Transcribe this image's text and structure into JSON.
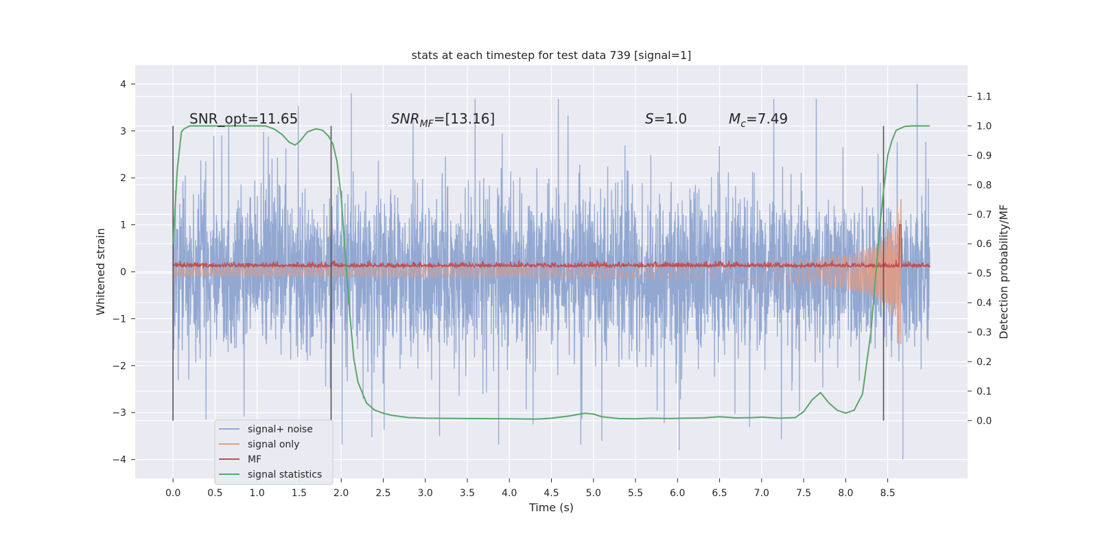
{
  "chart_data": {
    "type": "line",
    "title": "stats at each timestep for test data 739 [signal=1]",
    "xlabel": "Time (s)",
    "ylabel_left": "Whitened strain",
    "ylabel_right": "Detection probability/MF",
    "xlim": [
      -0.45,
      9.45
    ],
    "ylim_left": [
      -4.4,
      4.4
    ],
    "ylim_right": [
      -0.196,
      1.206
    ],
    "x_ticks": [
      0.0,
      0.5,
      1.0,
      1.5,
      2.0,
      2.5,
      3.0,
      3.5,
      4.0,
      4.5,
      5.0,
      5.5,
      6.0,
      6.5,
      7.0,
      7.5,
      8.0,
      8.5
    ],
    "x_tick_labels": [
      "0.0",
      "0.5",
      "1.0",
      "1.5",
      "2.0",
      "2.5",
      "3.0",
      "3.5",
      "4.0",
      "4.5",
      "5.0",
      "5.5",
      "6.0",
      "6.5",
      "7.0",
      "7.5",
      "8.0",
      "8.5"
    ],
    "y_left_ticks": [
      -4,
      -3,
      -2,
      -1,
      0,
      1,
      2,
      3,
      4
    ],
    "y_left_tick_labels": [
      "−4",
      "−3",
      "−2",
      "−1",
      "0",
      "1",
      "2",
      "3",
      "4"
    ],
    "y_right_ticks": [
      0.0,
      0.1,
      0.2,
      0.3,
      0.4,
      0.5,
      0.6,
      0.7,
      0.8,
      0.9,
      1.0,
      1.1
    ],
    "y_right_tick_labels": [
      "0.0",
      "0.1",
      "0.2",
      "0.3",
      "0.4",
      "0.5",
      "0.6",
      "0.7",
      "0.8",
      "0.9",
      "1.0",
      "1.1"
    ],
    "grid": true,
    "annotations": {
      "snr_opt": "SNR_opt=11.65",
      "snr_mf_name": "SNR",
      "snr_mf_sub": "MF",
      "snr_mf_value": "=[13.16]",
      "s_name": "S",
      "s_value": "=1.0",
      "mc_name": "M",
      "mc_sub": "c",
      "mc_value": "=7.49"
    },
    "vertical_lines_x": [
      0.0,
      1.88,
      8.45
    ],
    "noise_series": {
      "name": "signal+ noise",
      "x_range": [
        0.0,
        9.0
      ],
      "typical_abs_max": 1.2,
      "min": -4.0,
      "max": 4.0,
      "color": "#92a8d1"
    },
    "signal_series": {
      "name": "signal only",
      "x_range": [
        0.0,
        8.66
      ],
      "chirp_merger_time": 8.66,
      "peak_amplitude": 1.0,
      "color": "#e59b80"
    },
    "mf_series": {
      "name": "MF",
      "x_range": [
        0.0,
        9.0
      ],
      "baseline": 0.1,
      "peak_time": 8.65,
      "peak_value": 1.0,
      "color": "#c44e52"
    },
    "stat_series": {
      "name": "signal statistics",
      "color": "#55a868",
      "x": [
        0.0,
        0.05,
        0.1,
        0.13,
        0.2,
        0.3,
        0.5,
        0.7,
        0.9,
        1.0,
        1.1,
        1.2,
        1.3,
        1.38,
        1.45,
        1.5,
        1.6,
        1.7,
        1.78,
        1.85,
        1.9,
        1.95,
        2.0,
        2.05,
        2.1,
        2.15,
        2.2,
        2.3,
        2.4,
        2.5,
        2.6,
        2.8,
        3.0,
        3.5,
        4.0,
        4.3,
        4.4,
        4.5,
        4.7,
        4.9,
        5.0,
        5.1,
        5.3,
        5.5,
        5.7,
        5.9,
        6.1,
        6.3,
        6.5,
        6.7,
        6.9,
        7.0,
        7.2,
        7.4,
        7.5,
        7.6,
        7.7,
        7.8,
        7.9,
        8.0,
        8.1,
        8.2,
        8.3,
        8.4,
        8.45,
        8.5,
        8.55,
        8.6,
        8.7,
        8.8,
        9.0
      ],
      "y": [
        0.6,
        0.85,
        0.98,
        0.99,
        1.0,
        1.0,
        1.0,
        1.0,
        1.0,
        1.0,
        1.0,
        0.99,
        0.97,
        0.945,
        0.935,
        0.945,
        0.98,
        0.99,
        0.985,
        0.965,
        0.94,
        0.88,
        0.76,
        0.56,
        0.37,
        0.21,
        0.13,
        0.06,
        0.035,
        0.025,
        0.018,
        0.01,
        0.008,
        0.007,
        0.006,
        0.005,
        0.006,
        0.008,
        0.015,
        0.025,
        0.022,
        0.013,
        0.007,
        0.006,
        0.008,
        0.007,
        0.008,
        0.009,
        0.013,
        0.009,
        0.01,
        0.012,
        0.008,
        0.01,
        0.03,
        0.07,
        0.095,
        0.06,
        0.035,
        0.025,
        0.035,
        0.09,
        0.3,
        0.64,
        0.78,
        0.9,
        0.95,
        0.985,
        0.998,
        1.0,
        1.0
      ]
    },
    "legend": {
      "position": "lower-left",
      "entries": [
        {
          "label": "signal+ noise",
          "color": "#92a8d1"
        },
        {
          "label": "signal only",
          "color": "#e59b80"
        },
        {
          "label": "MF",
          "color": "#c44e52"
        },
        {
          "label": "signal statistics",
          "color": "#55a868"
        }
      ]
    },
    "colors": {
      "plot_bg": "#eaeaf2",
      "grid": "#ffffff",
      "text": "#262626",
      "vline": "#555555"
    }
  }
}
